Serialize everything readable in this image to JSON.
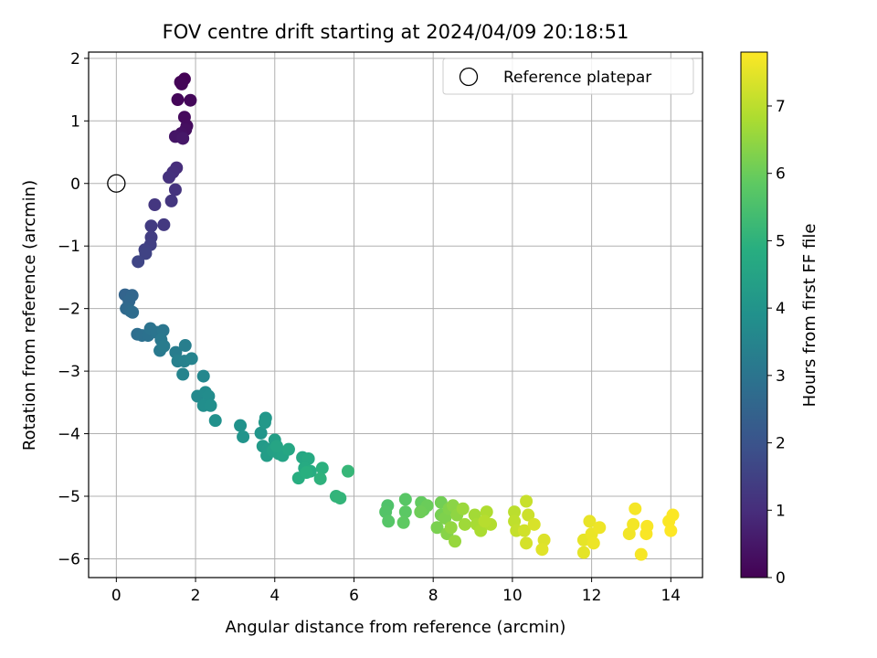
{
  "chart_data": {
    "type": "scatter",
    "title": "FOV centre drift starting at 2024/04/09 20:18:51",
    "xlabel": "Angular distance from reference (arcmin)",
    "ylabel": "Rotation from reference (arcmin)",
    "xlim": [
      -0.7,
      14.8
    ],
    "ylim": [
      -6.3,
      2.1
    ],
    "xticks": [
      0,
      2,
      4,
      6,
      8,
      10,
      12,
      14
    ],
    "yticks": [
      2,
      1,
      0,
      -1,
      -2,
      -3,
      -4,
      -5,
      -6
    ],
    "grid": true,
    "legend": {
      "placement": "top-right",
      "label": "Reference platepar"
    },
    "reference_point": {
      "x": 0,
      "y": 0
    },
    "colorbar": {
      "label": "Hours from first FF file",
      "range": [
        0,
        7.8
      ],
      "ticks": [
        0,
        1,
        2,
        3,
        4,
        5,
        6,
        7
      ],
      "colormap": "viridis"
    },
    "points": [
      [
        1.72,
        1.67,
        0.02
      ],
      [
        1.62,
        1.62,
        0.05
      ],
      [
        1.65,
        1.59,
        0.08
      ],
      [
        1.55,
        1.34,
        0.12
      ],
      [
        1.87,
        1.33,
        0.15
      ],
      [
        1.72,
        1.06,
        0.2
      ],
      [
        1.78,
        0.92,
        0.25
      ],
      [
        1.75,
        0.86,
        0.3
      ],
      [
        1.64,
        0.8,
        0.35
      ],
      [
        1.58,
        0.76,
        0.4
      ],
      [
        1.49,
        0.75,
        0.45
      ],
      [
        1.68,
        0.72,
        0.5
      ],
      [
        1.52,
        0.25,
        1.0
      ],
      [
        1.43,
        0.18,
        1.05
      ],
      [
        1.33,
        0.1,
        1.1
      ],
      [
        1.49,
        -0.1,
        1.15
      ],
      [
        1.39,
        -0.28,
        1.2
      ],
      [
        0.97,
        -0.34,
        1.25
      ],
      [
        1.2,
        -0.66,
        1.3
      ],
      [
        0.88,
        -0.68,
        1.35
      ],
      [
        0.88,
        -0.86,
        1.4
      ],
      [
        0.86,
        -0.98,
        1.45
      ],
      [
        0.72,
        -1.06,
        1.5
      ],
      [
        0.74,
        -1.12,
        1.55
      ],
      [
        0.55,
        -1.25,
        1.6
      ],
      [
        0.22,
        -1.78,
        2.5
      ],
      [
        0.4,
        -1.79,
        2.55
      ],
      [
        0.32,
        -1.88,
        2.6
      ],
      [
        0.25,
        -2.0,
        2.65
      ],
      [
        0.36,
        -2.04,
        2.7
      ],
      [
        0.41,
        -2.06,
        2.75
      ],
      [
        0.53,
        -2.41,
        2.8
      ],
      [
        0.65,
        -2.43,
        2.85
      ],
      [
        0.8,
        -2.43,
        2.9
      ],
      [
        0.86,
        -2.32,
        2.95
      ],
      [
        1.02,
        -2.38,
        3.0
      ],
      [
        1.18,
        -2.35,
        3.05
      ],
      [
        1.13,
        -2.5,
        3.1
      ],
      [
        1.1,
        -2.67,
        3.15
      ],
      [
        1.2,
        -2.6,
        3.2
      ],
      [
        1.5,
        -2.7,
        3.25
      ],
      [
        1.74,
        -2.59,
        3.3
      ],
      [
        1.55,
        -2.84,
        3.35
      ],
      [
        1.72,
        -2.84,
        3.4
      ],
      [
        1.9,
        -2.8,
        3.45
      ],
      [
        1.68,
        -3.05,
        3.5
      ],
      [
        2.2,
        -3.08,
        3.6
      ],
      [
        2.05,
        -3.4,
        3.65
      ],
      [
        2.25,
        -3.34,
        3.7
      ],
      [
        2.33,
        -3.4,
        3.75
      ],
      [
        2.2,
        -3.55,
        3.8
      ],
      [
        2.38,
        -3.55,
        3.85
      ],
      [
        2.5,
        -3.79,
        3.9
      ],
      [
        3.13,
        -3.87,
        3.95
      ],
      [
        3.2,
        -4.05,
        4.0
      ],
      [
        3.65,
        -3.99,
        4.05
      ],
      [
        3.77,
        -3.75,
        4.1
      ],
      [
        3.75,
        -3.82,
        4.15
      ],
      [
        3.7,
        -4.2,
        4.2
      ],
      [
        3.82,
        -4.25,
        4.25
      ],
      [
        3.8,
        -4.35,
        4.3
      ],
      [
        4.0,
        -4.1,
        4.35
      ],
      [
        3.95,
        -4.27,
        4.4
      ],
      [
        4.1,
        -4.32,
        4.45
      ],
      [
        4.2,
        -4.35,
        4.5
      ],
      [
        4.05,
        -4.2,
        4.55
      ],
      [
        4.35,
        -4.25,
        4.6
      ],
      [
        4.7,
        -4.38,
        4.65
      ],
      [
        4.85,
        -4.4,
        4.7
      ],
      [
        4.75,
        -4.55,
        4.75
      ],
      [
        4.9,
        -4.6,
        4.8
      ],
      [
        4.6,
        -4.71,
        4.85
      ],
      [
        4.8,
        -4.62,
        4.9
      ],
      [
        5.2,
        -4.55,
        4.95
      ],
      [
        5.15,
        -4.72,
        5.0
      ],
      [
        5.55,
        -5.0,
        5.05
      ],
      [
        5.65,
        -5.03,
        5.1
      ],
      [
        5.85,
        -4.6,
        5.15
      ],
      [
        6.85,
        -5.15,
        5.6
      ],
      [
        6.8,
        -5.25,
        5.65
      ],
      [
        6.87,
        -5.4,
        5.7
      ],
      [
        7.3,
        -5.05,
        5.75
      ],
      [
        7.3,
        -5.25,
        5.8
      ],
      [
        7.25,
        -5.42,
        5.85
      ],
      [
        7.7,
        -5.1,
        5.9
      ],
      [
        7.75,
        -5.22,
        5.95
      ],
      [
        7.85,
        -5.15,
        6.0
      ],
      [
        7.68,
        -5.25,
        6.05
      ],
      [
        8.2,
        -5.1,
        6.1
      ],
      [
        8.2,
        -5.3,
        6.15
      ],
      [
        8.1,
        -5.5,
        6.2
      ],
      [
        8.3,
        -5.35,
        6.25
      ],
      [
        8.4,
        -5.2,
        6.3
      ],
      [
        8.35,
        -5.6,
        6.35
      ],
      [
        8.5,
        -5.15,
        6.4
      ],
      [
        8.6,
        -5.3,
        6.45
      ],
      [
        8.45,
        -5.5,
        6.5
      ],
      [
        8.55,
        -5.72,
        6.55
      ],
      [
        8.75,
        -5.2,
        6.6
      ],
      [
        8.8,
        -5.45,
        6.65
      ],
      [
        9.05,
        -5.3,
        6.7
      ],
      [
        9.1,
        -5.45,
        6.75
      ],
      [
        9.2,
        -5.55,
        6.8
      ],
      [
        9.35,
        -5.25,
        6.85
      ],
      [
        9.45,
        -5.45,
        6.9
      ],
      [
        9.3,
        -5.4,
        6.95
      ],
      [
        10.05,
        -5.25,
        7.0
      ],
      [
        10.05,
        -5.4,
        7.05
      ],
      [
        10.1,
        -5.55,
        7.1
      ],
      [
        10.35,
        -5.08,
        7.15
      ],
      [
        10.4,
        -5.3,
        7.2
      ],
      [
        10.3,
        -5.55,
        7.25
      ],
      [
        10.35,
        -5.75,
        7.3
      ],
      [
        10.55,
        -5.45,
        7.35
      ],
      [
        10.8,
        -5.7,
        7.4
      ],
      [
        10.75,
        -5.85,
        7.45
      ],
      [
        11.8,
        -5.9,
        7.5
      ],
      [
        11.8,
        -5.7,
        7.52
      ],
      [
        11.95,
        -5.4,
        7.55
      ],
      [
        12.0,
        -5.6,
        7.58
      ],
      [
        12.05,
        -5.75,
        7.6
      ],
      [
        12.2,
        -5.5,
        7.62
      ],
      [
        12.95,
        -5.6,
        7.65
      ],
      [
        13.05,
        -5.45,
        7.68
      ],
      [
        13.1,
        -5.2,
        7.7
      ],
      [
        13.25,
        -5.93,
        7.72
      ],
      [
        13.4,
        -5.48,
        7.74
      ],
      [
        13.38,
        -5.6,
        7.75
      ],
      [
        13.95,
        -5.4,
        7.76
      ],
      [
        14.05,
        -5.3,
        7.78
      ],
      [
        14.0,
        -5.55,
        7.8
      ]
    ]
  }
}
